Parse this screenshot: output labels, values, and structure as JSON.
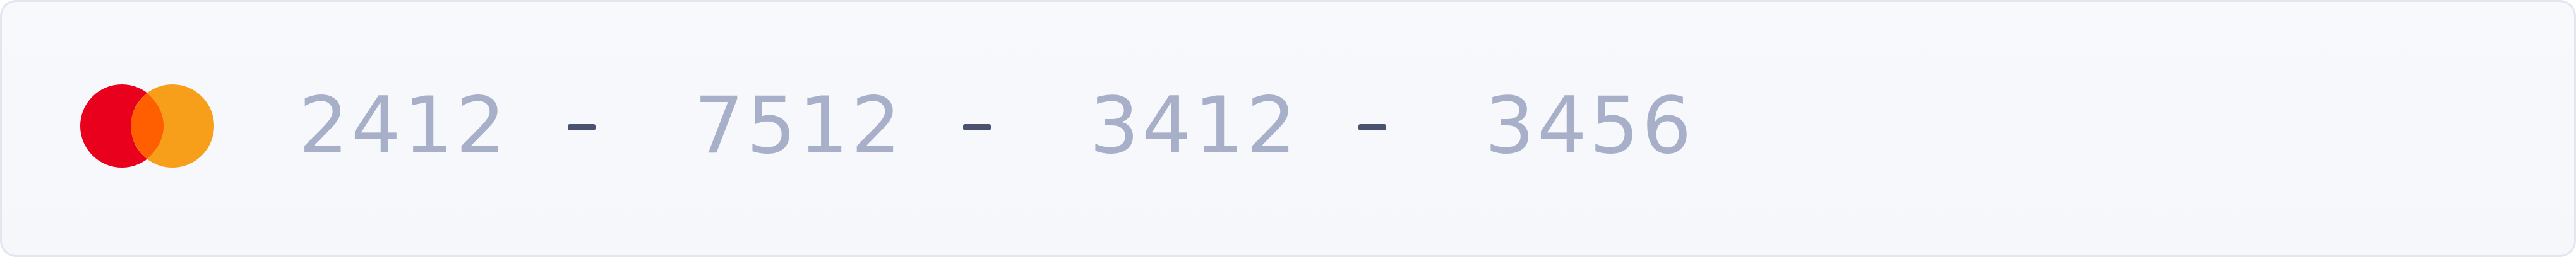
{
  "card_input": {
    "brand": "mastercard",
    "brand_logo_icon": "mastercard-logo-icon",
    "colors": {
      "brand_red": "#e8001d",
      "brand_orange": "#f79e1b",
      "brand_overlap": "#ff5f00",
      "digits": "#a7b0c8",
      "separator": "#4a5270",
      "border": "#e2e7ef",
      "background": "#f7f9fc"
    },
    "groups": [
      {
        "label": "2412"
      },
      {
        "label": "7512"
      },
      {
        "label": "3412"
      },
      {
        "label": "3456"
      }
    ],
    "separator_label": "-"
  }
}
